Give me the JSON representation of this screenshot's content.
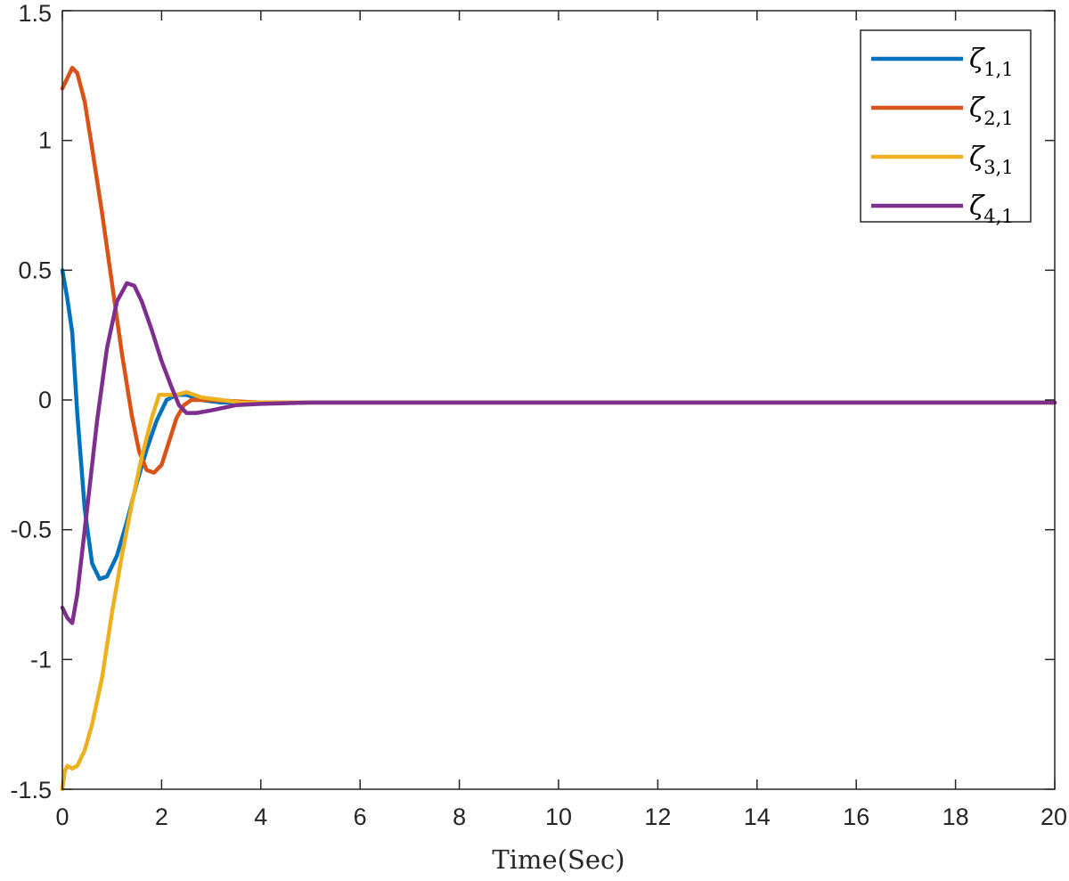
{
  "chart_data": {
    "type": "line",
    "title": "",
    "xlabel": "Time(Sec)",
    "ylabel": "",
    "xlim": [
      0,
      20
    ],
    "ylim": [
      -1.5,
      1.5
    ],
    "xticks": [
      "0",
      "2",
      "4",
      "6",
      "8",
      "10",
      "12",
      "14",
      "16",
      "18",
      "20"
    ],
    "yticks": [
      "-1.5",
      "-1",
      "-0.5",
      "0",
      "0.5",
      "1",
      "1.5"
    ],
    "grid": false,
    "legend_position": "top-right",
    "series": [
      {
        "name": "ζ",
        "subscript": "1,1",
        "color": "#0072BD",
        "points": [
          [
            0,
            0.5
          ],
          [
            0.1,
            0.39
          ],
          [
            0.2,
            0.26
          ],
          [
            0.3,
            -0.05
          ],
          [
            0.45,
            -0.42
          ],
          [
            0.6,
            -0.63
          ],
          [
            0.75,
            -0.69
          ],
          [
            0.9,
            -0.68
          ],
          [
            1.1,
            -0.6
          ],
          [
            1.3,
            -0.47
          ],
          [
            1.5,
            -0.32
          ],
          [
            1.7,
            -0.19
          ],
          [
            1.9,
            -0.08
          ],
          [
            2.1,
            0.0
          ],
          [
            2.3,
            0.02
          ],
          [
            2.5,
            0.02
          ],
          [
            2.8,
            0.0
          ],
          [
            3.2,
            -0.01
          ],
          [
            3.6,
            -0.01
          ],
          [
            4,
            -0.01
          ],
          [
            5,
            -0.01
          ],
          [
            6,
            -0.01
          ],
          [
            8,
            -0.01
          ],
          [
            10,
            -0.01
          ],
          [
            12,
            -0.01
          ],
          [
            14,
            -0.01
          ],
          [
            16,
            -0.01
          ],
          [
            18,
            -0.01
          ],
          [
            20,
            -0.01
          ]
        ]
      },
      {
        "name": "ζ",
        "subscript": "2,1",
        "color": "#D95319",
        "points": [
          [
            0,
            1.2
          ],
          [
            0.1,
            1.24
          ],
          [
            0.2,
            1.28
          ],
          [
            0.3,
            1.26
          ],
          [
            0.45,
            1.15
          ],
          [
            0.6,
            0.97
          ],
          [
            0.8,
            0.72
          ],
          [
            1.0,
            0.45
          ],
          [
            1.2,
            0.18
          ],
          [
            1.4,
            -0.06
          ],
          [
            1.55,
            -0.2
          ],
          [
            1.7,
            -0.27
          ],
          [
            1.85,
            -0.28
          ],
          [
            2.0,
            -0.25
          ],
          [
            2.15,
            -0.16
          ],
          [
            2.3,
            -0.07
          ],
          [
            2.45,
            -0.02
          ],
          [
            2.6,
            0.0
          ],
          [
            3.0,
            0.0
          ],
          [
            3.5,
            -0.005
          ],
          [
            4,
            -0.01
          ],
          [
            5,
            -0.01
          ],
          [
            6,
            -0.01
          ],
          [
            8,
            -0.01
          ],
          [
            10,
            -0.01
          ],
          [
            12,
            -0.01
          ],
          [
            14,
            -0.01
          ],
          [
            16,
            -0.01
          ],
          [
            18,
            -0.01
          ],
          [
            20,
            -0.01
          ]
        ]
      },
      {
        "name": "ζ",
        "subscript": "3,1",
        "color": "#EDB120",
        "points": [
          [
            0,
            -1.5
          ],
          [
            0.05,
            -1.43
          ],
          [
            0.1,
            -1.41
          ],
          [
            0.2,
            -1.42
          ],
          [
            0.3,
            -1.41
          ],
          [
            0.45,
            -1.35
          ],
          [
            0.6,
            -1.25
          ],
          [
            0.8,
            -1.07
          ],
          [
            1.0,
            -0.82
          ],
          [
            1.2,
            -0.6
          ],
          [
            1.4,
            -0.4
          ],
          [
            1.6,
            -0.22
          ],
          [
            1.8,
            -0.07
          ],
          [
            1.95,
            0.02
          ],
          [
            2.1,
            0.02
          ],
          [
            2.3,
            0.02
          ],
          [
            2.5,
            0.03
          ],
          [
            2.8,
            0.01
          ],
          [
            3.2,
            0.0
          ],
          [
            3.6,
            -0.01
          ],
          [
            4,
            -0.01
          ],
          [
            5,
            -0.01
          ],
          [
            6,
            -0.01
          ],
          [
            8,
            -0.01
          ],
          [
            10,
            -0.01
          ],
          [
            12,
            -0.01
          ],
          [
            14,
            -0.01
          ],
          [
            16,
            -0.01
          ],
          [
            18,
            -0.01
          ],
          [
            20,
            -0.01
          ]
        ]
      },
      {
        "name": "ζ",
        "subscript": "4,1",
        "color": "#7E2F8E",
        "points": [
          [
            0,
            -0.8
          ],
          [
            0.1,
            -0.84
          ],
          [
            0.2,
            -0.86
          ],
          [
            0.3,
            -0.75
          ],
          [
            0.5,
            -0.42
          ],
          [
            0.7,
            -0.08
          ],
          [
            0.9,
            0.2
          ],
          [
            1.1,
            0.38
          ],
          [
            1.3,
            0.45
          ],
          [
            1.45,
            0.44
          ],
          [
            1.6,
            0.38
          ],
          [
            1.8,
            0.27
          ],
          [
            2.0,
            0.15
          ],
          [
            2.2,
            0.05
          ],
          [
            2.35,
            -0.02
          ],
          [
            2.5,
            -0.05
          ],
          [
            2.7,
            -0.05
          ],
          [
            3.0,
            -0.04
          ],
          [
            3.5,
            -0.02
          ],
          [
            4,
            -0.015
          ],
          [
            5,
            -0.01
          ],
          [
            6,
            -0.01
          ],
          [
            8,
            -0.01
          ],
          [
            10,
            -0.01
          ],
          [
            12,
            -0.01
          ],
          [
            14,
            -0.01
          ],
          [
            16,
            -0.01
          ],
          [
            18,
            -0.01
          ],
          [
            20,
            -0.01
          ]
        ]
      }
    ]
  }
}
